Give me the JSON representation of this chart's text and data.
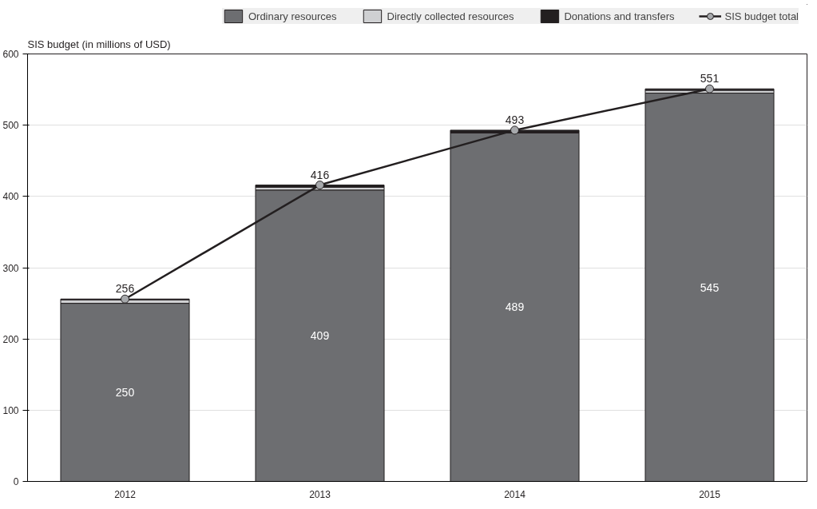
{
  "chart_data": {
    "type": "bar",
    "stacked": true,
    "ylabel": "SIS budget (in millions of USD)",
    "categories": [
      "2012",
      "2013",
      "2014",
      "2015"
    ],
    "series": [
      {
        "name": "Ordinary resources",
        "color": "#6d6e71",
        "values": [
          250,
          409,
          489,
          545
        ],
        "value_labels": [
          "250",
          "409",
          "489",
          "545"
        ]
      },
      {
        "name": "Directly collected resources",
        "color": "#cfd0d2",
        "values": [
          5,
          4,
          0,
          4
        ]
      },
      {
        "name": "Donations and transfers",
        "color": "#231f20",
        "values": [
          1,
          3,
          4,
          2
        ]
      },
      {
        "name": "SIS budget total",
        "type": "line",
        "color": "#231f20",
        "marker": "circle",
        "values": [
          256,
          416,
          493,
          551
        ],
        "value_labels": [
          "256",
          "416",
          "493",
          "551"
        ]
      }
    ],
    "ylim": [
      0,
      600
    ],
    "yticks": [
      0,
      100,
      200,
      300,
      400,
      500,
      600
    ],
    "grid": "y",
    "legend": "top"
  }
}
